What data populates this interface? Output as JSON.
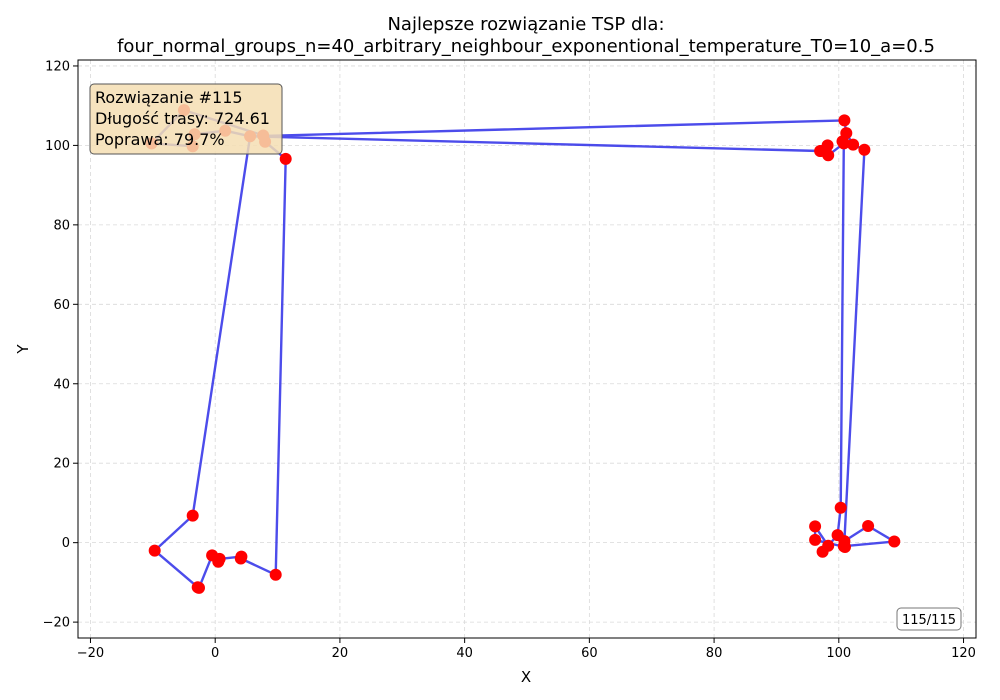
{
  "chart_data": {
    "type": "scatter",
    "title_line1": "Najlepsze rozwiązanie TSP dla:",
    "title_line2": "four_normal_groups_n=40_arbitrary_neighbour_exponentional_temperature_T0=10_a=0.5",
    "xlabel": "X",
    "ylabel": "Y",
    "xlim": [
      -22,
      122
    ],
    "ylim": [
      -24,
      121.5
    ],
    "xticks": [
      -20,
      0,
      20,
      40,
      60,
      80,
      100,
      120
    ],
    "yticks": [
      -20,
      0,
      20,
      40,
      60,
      80,
      100,
      120
    ],
    "grid": true,
    "colors": {
      "route": "#3333e8",
      "city": "#ff0000",
      "info_box_bg": "#f5deb3"
    },
    "route": [
      [
        -3.3,
        102.8
      ],
      [
        1.6,
        103.7
      ],
      [
        5.6,
        102.3
      ],
      [
        97.1,
        98.6
      ],
      [
        98.2,
        100.0
      ],
      [
        98.3,
        97.5
      ],
      [
        100.8,
        100.5
      ],
      [
        100.3,
        8.8
      ],
      [
        99.8,
        1.9
      ],
      [
        97.4,
        -2.3
      ],
      [
        98.3,
        -0.8
      ],
      [
        96.2,
        4.1
      ],
      [
        96.2,
        0.7
      ],
      [
        101.0,
        -1.1
      ],
      [
        100.8,
        -0.9
      ],
      [
        108.9,
        0.3
      ],
      [
        104.7,
        4.2
      ],
      [
        100.9,
        0.4
      ],
      [
        104.1,
        98.9
      ],
      [
        102.3,
        100.2
      ],
      [
        101.2,
        103.1
      ],
      [
        100.9,
        106.3
      ],
      [
        5.6,
        102.3
      ],
      [
        -3.6,
        6.8
      ],
      [
        -9.7,
        -2.0
      ],
      [
        -2.8,
        -11.2
      ],
      [
        -2.6,
        -11.4
      ],
      [
        -0.5,
        -3.2
      ],
      [
        0.5,
        -4.8
      ],
      [
        0.7,
        -4.1
      ],
      [
        4.2,
        -3.5
      ],
      [
        4.1,
        -4.0
      ],
      [
        9.7,
        -8.1
      ],
      [
        11.3,
        96.6
      ],
      [
        8.0,
        100.9
      ],
      [
        7.7,
        102.5
      ],
      [
        -5.0,
        108.9
      ],
      [
        -10.2,
        100.5
      ],
      [
        -3.6,
        99.8
      ],
      [
        -3.3,
        102.8
      ]
    ],
    "cities": [
      [
        -5.0,
        108.9
      ],
      [
        -10.2,
        100.5
      ],
      [
        -3.6,
        99.8
      ],
      [
        -3.3,
        102.8
      ],
      [
        1.6,
        103.7
      ],
      [
        5.6,
        102.3
      ],
      [
        7.7,
        102.5
      ],
      [
        8.0,
        100.9
      ],
      [
        11.3,
        96.6
      ],
      [
        -3.6,
        6.8
      ],
      [
        -9.7,
        -2.0
      ],
      [
        -2.8,
        -11.2
      ],
      [
        -2.6,
        -11.4
      ],
      [
        -0.5,
        -3.2
      ],
      [
        0.5,
        -4.8
      ],
      [
        0.7,
        -4.1
      ],
      [
        4.2,
        -3.5
      ],
      [
        4.1,
        -4.0
      ],
      [
        9.7,
        -8.1
      ],
      [
        96.2,
        4.1
      ],
      [
        96.2,
        0.7
      ],
      [
        97.4,
        -2.3
      ],
      [
        98.3,
        -0.8
      ],
      [
        99.8,
        1.9
      ],
      [
        100.3,
        8.8
      ],
      [
        100.8,
        -0.9
      ],
      [
        101.0,
        -1.1
      ],
      [
        100.9,
        0.4
      ],
      [
        104.7,
        4.2
      ],
      [
        108.9,
        0.3
      ],
      [
        97.1,
        98.6
      ],
      [
        98.2,
        100.0
      ],
      [
        98.3,
        97.5
      ],
      [
        100.8,
        100.5
      ],
      [
        100.9,
        106.3
      ],
      [
        101.2,
        103.1
      ],
      [
        102.3,
        100.2
      ],
      [
        104.1,
        98.9
      ],
      [
        100.6,
        101.0
      ],
      [
        97.0,
        98.6
      ]
    ],
    "info_lines": [
      "Rozwiązanie #115",
      "Długość trasy: 724.61",
      "Poprawa: 79.7%"
    ],
    "counter": "115/115"
  }
}
